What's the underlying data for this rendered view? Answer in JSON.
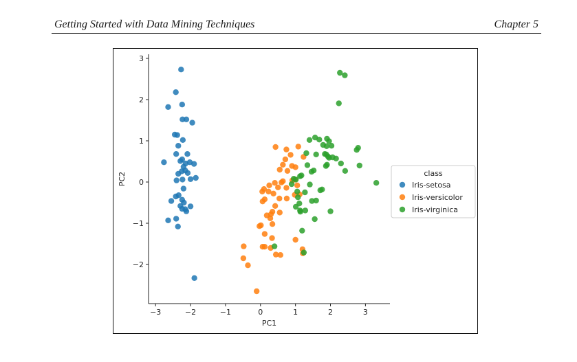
{
  "header": {
    "left": "Getting Started with Data Mining Techniques",
    "right": "Chapter 5"
  },
  "colors": {
    "Iris-setosa": "#1f77b4",
    "Iris-versicolor": "#ff7f0e",
    "Iris-virginica": "#2ca02c"
  },
  "chart_data": {
    "type": "scatter",
    "title": "",
    "xlabel": "PC1",
    "ylabel": "PC2",
    "xlim": [
      -3.2,
      3.7
    ],
    "ylim": [
      -2.95,
      3.1
    ],
    "xticks": [
      -3,
      -2,
      -1,
      0,
      1,
      2,
      3
    ],
    "yticks": [
      -2,
      -1,
      0,
      1,
      2,
      3
    ],
    "grid": false,
    "legend": {
      "title": "class",
      "placement": "center-right outside"
    },
    "series": [
      {
        "name": "Iris-setosa",
        "points": [
          [
            -2.27,
            2.73
          ],
          [
            -2.42,
            2.18
          ],
          [
            -2.64,
            1.82
          ],
          [
            -2.24,
            1.88
          ],
          [
            -2.23,
            1.52
          ],
          [
            -2.12,
            1.52
          ],
          [
            -1.95,
            1.44
          ],
          [
            -2.45,
            1.15
          ],
          [
            -2.38,
            1.14
          ],
          [
            -2.22,
            1.02
          ],
          [
            -2.35,
            0.88
          ],
          [
            -2.41,
            0.68
          ],
          [
            -2.09,
            0.68
          ],
          [
            -2.24,
            0.55
          ],
          [
            -2.29,
            0.51
          ],
          [
            -2.14,
            0.45
          ],
          [
            -1.9,
            0.44
          ],
          [
            -2.02,
            0.48
          ],
          [
            -2.76,
            0.48
          ],
          [
            -2.2,
            0.37
          ],
          [
            -2.15,
            0.28
          ],
          [
            -2.25,
            0.26
          ],
          [
            -2.08,
            0.22
          ],
          [
            -2.35,
            0.2
          ],
          [
            -1.85,
            0.1
          ],
          [
            -2.23,
            0.06
          ],
          [
            -2.4,
            0.04
          ],
          [
            -2.0,
            0.07
          ],
          [
            -2.2,
            -0.16
          ],
          [
            -2.34,
            -0.32
          ],
          [
            -2.42,
            -0.35
          ],
          [
            -2.24,
            -0.43
          ],
          [
            -2.19,
            -0.5
          ],
          [
            -2.55,
            -0.46
          ],
          [
            -2.29,
            -0.58
          ],
          [
            -2.0,
            -0.59
          ],
          [
            -2.24,
            -0.65
          ],
          [
            -2.15,
            -0.66
          ],
          [
            -2.12,
            -0.71
          ],
          [
            -2.41,
            -0.89
          ],
          [
            -2.64,
            -0.93
          ],
          [
            -2.36,
            -1.08
          ],
          [
            -1.89,
            -2.33
          ]
        ]
      },
      {
        "name": "Iris-versicolor",
        "points": [
          [
            0.43,
            0.85
          ],
          [
            0.74,
            0.79
          ],
          [
            1.08,
            0.86
          ],
          [
            0.86,
            0.66
          ],
          [
            0.71,
            0.55
          ],
          [
            1.23,
            0.61
          ],
          [
            0.9,
            0.39
          ],
          [
            1.0,
            0.36
          ],
          [
            0.64,
            0.42
          ],
          [
            0.77,
            0.27
          ],
          [
            0.55,
            0.3
          ],
          [
            0.99,
            0.06
          ],
          [
            0.91,
            0.04
          ],
          [
            0.6,
            -0.01
          ],
          [
            0.64,
            0.02
          ],
          [
            0.41,
            -0.02
          ],
          [
            0.25,
            -0.08
          ],
          [
            0.1,
            -0.17
          ],
          [
            0.05,
            -0.23
          ],
          [
            0.5,
            -0.13
          ],
          [
            0.23,
            -0.23
          ],
          [
            0.74,
            -0.14
          ],
          [
            1.05,
            -0.08
          ],
          [
            0.37,
            -0.28
          ],
          [
            0.54,
            -0.4
          ],
          [
            0.12,
            -0.42
          ],
          [
            0.75,
            -0.4
          ],
          [
            0.98,
            -0.31
          ],
          [
            1.12,
            -0.3
          ],
          [
            0.06,
            -0.47
          ],
          [
            0.42,
            -0.58
          ],
          [
            0.34,
            -0.72
          ],
          [
            0.55,
            -0.74
          ],
          [
            0.18,
            -0.81
          ],
          [
            0.3,
            -0.78
          ],
          [
            0.28,
            -0.88
          ],
          [
            0.34,
            -1.02
          ],
          [
            -0.03,
            -1.07
          ],
          [
            0.01,
            -1.05
          ],
          [
            0.12,
            -1.26
          ],
          [
            0.33,
            -1.36
          ],
          [
            1.0,
            -1.4
          ],
          [
            0.06,
            -1.57
          ],
          [
            0.29,
            -1.6
          ],
          [
            0.12,
            -1.57
          ],
          [
            -0.48,
            -1.56
          ],
          [
            1.2,
            -1.63
          ],
          [
            0.44,
            -1.76
          ],
          [
            0.57,
            -1.77
          ],
          [
            1.21,
            -1.73
          ],
          [
            -0.49,
            -1.85
          ],
          [
            -0.36,
            -2.02
          ],
          [
            -0.11,
            -2.65
          ]
        ]
      },
      {
        "name": "Iris-virginica",
        "points": [
          [
            2.27,
            2.65
          ],
          [
            2.41,
            2.59
          ],
          [
            2.24,
            1.91
          ],
          [
            1.56,
            1.08
          ],
          [
            1.68,
            1.03
          ],
          [
            1.4,
            1.02
          ],
          [
            1.9,
            1.05
          ],
          [
            1.96,
            0.99
          ],
          [
            1.79,
            0.9
          ],
          [
            1.89,
            0.87
          ],
          [
            2.03,
            0.88
          ],
          [
            2.79,
            0.83
          ],
          [
            2.75,
            0.78
          ],
          [
            1.84,
            0.68
          ],
          [
            1.88,
            0.67
          ],
          [
            1.59,
            0.67
          ],
          [
            1.31,
            0.7
          ],
          [
            2.06,
            0.6
          ],
          [
            2.16,
            0.57
          ],
          [
            1.93,
            0.62
          ],
          [
            1.96,
            0.59
          ],
          [
            2.3,
            0.45
          ],
          [
            2.83,
            0.4
          ],
          [
            1.9,
            0.42
          ],
          [
            1.87,
            0.39
          ],
          [
            1.34,
            0.41
          ],
          [
            1.52,
            0.28
          ],
          [
            1.46,
            0.25
          ],
          [
            1.17,
            0.16
          ],
          [
            1.13,
            0.14
          ],
          [
            0.95,
            0.08
          ],
          [
            1.01,
            0.06
          ],
          [
            2.42,
            0.27
          ],
          [
            3.31,
            -0.02
          ],
          [
            0.89,
            -0.05
          ],
          [
            1.41,
            -0.06
          ],
          [
            1.76,
            -0.18
          ],
          [
            1.71,
            -0.2
          ],
          [
            1.05,
            -0.23
          ],
          [
            1.27,
            -0.25
          ],
          [
            1.07,
            -0.37
          ],
          [
            1.47,
            -0.46
          ],
          [
            1.59,
            -0.45
          ],
          [
            1.11,
            -0.52
          ],
          [
            1.01,
            -0.6
          ],
          [
            1.13,
            -0.69
          ],
          [
            1.28,
            -0.69
          ],
          [
            1.14,
            -0.72
          ],
          [
            2.0,
            -0.71
          ],
          [
            1.55,
            -0.9
          ],
          [
            0.4,
            -1.56
          ],
          [
            1.19,
            -1.18
          ],
          [
            1.24,
            -1.71
          ]
        ]
      }
    ]
  }
}
